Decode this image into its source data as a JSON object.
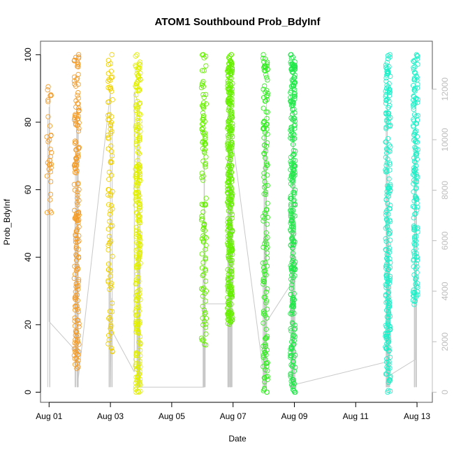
{
  "chart_data": {
    "type": "scatter",
    "title": "ATOM1 Southbound Prob_BdyInf",
    "xlabel": "Date",
    "ylabel": "Prob_BdyInf",
    "x_ticks": [
      "Aug 01",
      "Aug 03",
      "Aug 05",
      "Aug 07",
      "Aug 09",
      "Aug 11",
      "Aug 13"
    ],
    "x_tick_days": [
      1,
      3,
      5,
      7,
      9,
      11,
      13
    ],
    "xlim_days": [
      0.72,
      13.5
    ],
    "ylim": [
      -3,
      104
    ],
    "y_ticks": [
      0,
      20,
      40,
      60,
      80,
      100
    ],
    "y2_ticks": [
      0,
      2000,
      4000,
      6000,
      8000,
      10000,
      12000
    ],
    "y2lim": [
      -400,
      13900
    ],
    "marker": "open-circle",
    "colors": {
      "orange": "#f39c2a",
      "yellow_orange": "#f0d000",
      "yellow": "#e2f000",
      "yellow_green": "#66f000",
      "green": "#33ee22",
      "bright_green": "#22e84a",
      "cyan": "#1ef0c8",
      "line": "#c8c8c8"
    },
    "clusters": [
      {
        "day": 1.0,
        "color": "orange",
        "ymin": 52,
        "ymax": 90.5,
        "n": 30,
        "extra": [
          90.5,
          76,
          72
        ]
      },
      {
        "day": 1.9,
        "color": "orange",
        "ymin": 7,
        "ymax": 100,
        "n": 180,
        "extra": [
          100,
          99,
          97,
          7
        ]
      },
      {
        "day": 3.0,
        "color": "yellow_orange",
        "ymin": 12,
        "ymax": 100,
        "n": 90,
        "extra": [
          100,
          12
        ]
      },
      {
        "day": 3.9,
        "color": "yellow",
        "ymin": 0,
        "ymax": 100,
        "n": 260,
        "extra": [
          100,
          0,
          0
        ]
      },
      {
        "day": 6.05,
        "color": "yellow_green",
        "ymin": 14,
        "ymax": 100,
        "n": 110,
        "extra": [
          100,
          91,
          14
        ]
      },
      {
        "day": 6.9,
        "color": "yellow_green",
        "ymin": 20,
        "ymax": 100,
        "n": 330,
        "extra": [
          100,
          100,
          98
        ]
      },
      {
        "day": 8.05,
        "color": "green",
        "ymin": 0,
        "ymax": 100,
        "n": 150,
        "extra": [
          100,
          0,
          0
        ]
      },
      {
        "day": 8.95,
        "color": "bright_green",
        "ymin": 0,
        "ymax": 100,
        "n": 280,
        "extra": [
          100,
          0,
          0
        ]
      },
      {
        "day": 12.05,
        "color": "cyan",
        "ymin": 0,
        "ymax": 100,
        "n": 230,
        "extra": [
          100,
          0
        ]
      },
      {
        "day": 12.95,
        "color": "cyan",
        "ymin": 25,
        "ymax": 100,
        "n": 160,
        "extra": [
          100,
          32
        ]
      }
    ],
    "secondary_line": {
      "name": "",
      "points": [
        [
          1.0,
          11300
        ],
        [
          1.0,
          2800
        ],
        [
          1.9,
          1600
        ],
        [
          1.9,
          11300
        ],
        [
          1.92,
          200
        ],
        [
          3.0,
          11900
        ],
        [
          3.0,
          200
        ],
        [
          3.02,
          2500
        ],
        [
          3.78,
          800
        ],
        [
          3.78,
          11900
        ],
        [
          3.95,
          11300
        ],
        [
          3.97,
          200
        ],
        [
          6.05,
          200
        ],
        [
          6.05,
          3500
        ],
        [
          6.9,
          3500
        ],
        [
          6.93,
          200
        ],
        [
          6.93,
          10500
        ],
        [
          8.05,
          200
        ],
        [
          8.1,
          2800
        ],
        [
          8.95,
          4400
        ],
        [
          9.0,
          300
        ],
        [
          12.0,
          1200
        ],
        [
          12.0,
          10000
        ],
        [
          12.02,
          600
        ],
        [
          12.95,
          1300
        ],
        [
          12.97,
          9500
        ],
        [
          12.97,
          300
        ]
      ]
    },
    "grid": false,
    "legend": "none"
  }
}
